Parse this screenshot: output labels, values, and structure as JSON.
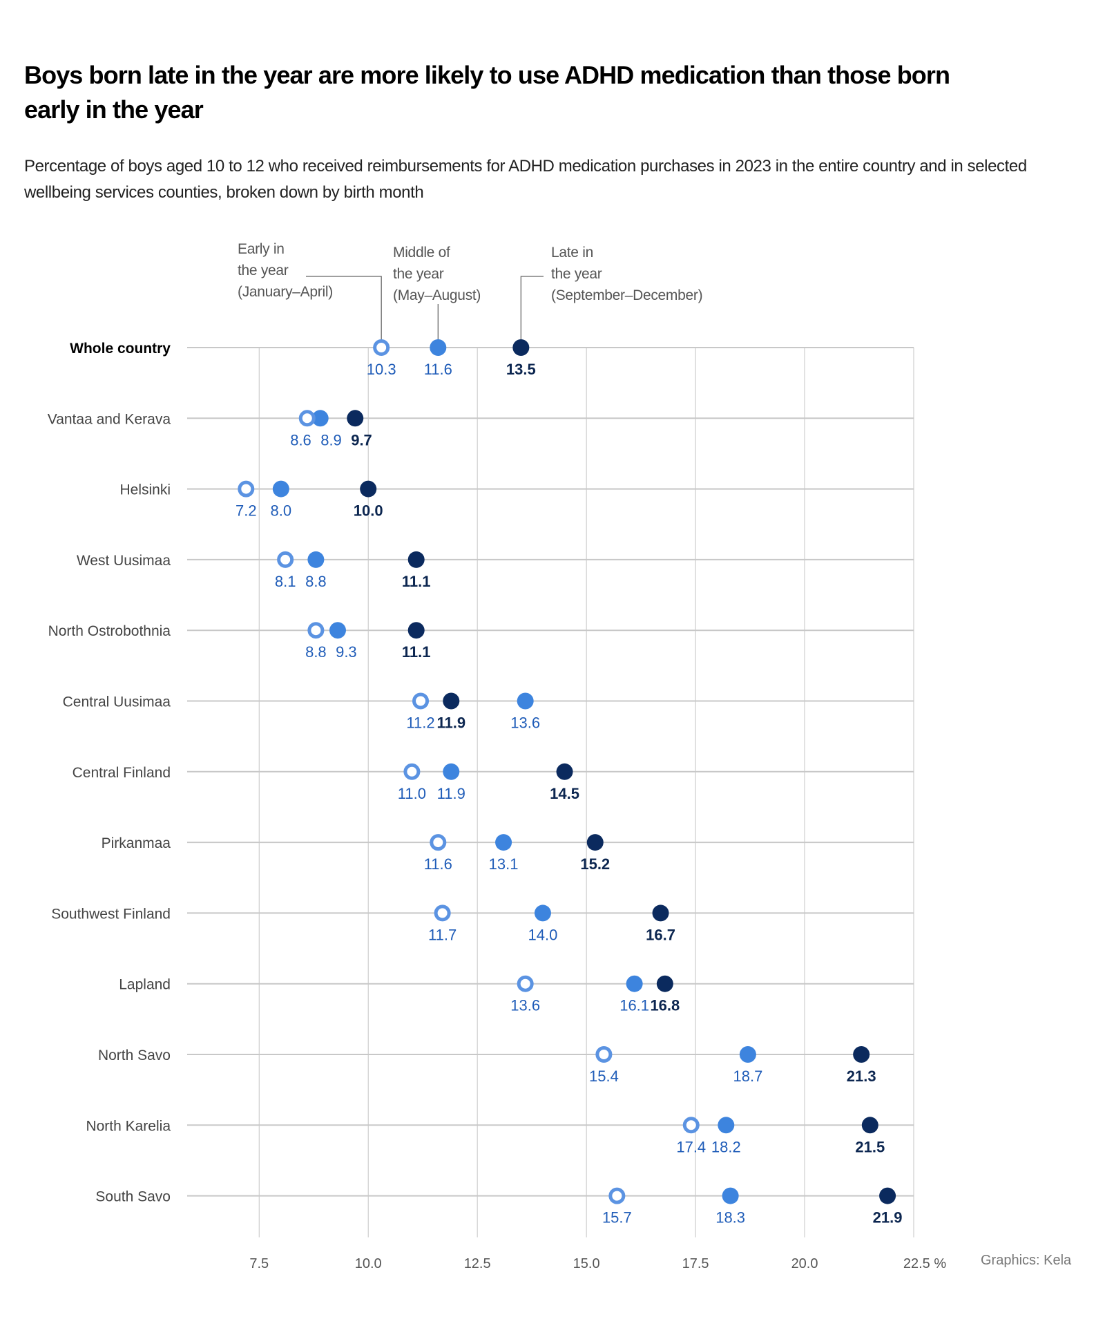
{
  "title": "Boys born late in the year are more likely to use ADHD medication than those born early in the year",
  "subtitle": "Percentage of boys aged 10 to 12 who received reimbursements for ADHD medication purchases in 2023 in the entire country and in selected wellbeing services counties, broken down by birth month",
  "legend": {
    "early": "Early in\nthe year\n(January–April)",
    "middle": "Middle of\nthe year\n(May–August)",
    "late": "Late in\nthe year\n(September–December)"
  },
  "credit": "Graphics: Kela",
  "colors": {
    "early_stroke": "#5b93e2",
    "middle": "#3d84de",
    "late": "#0b2a5e",
    "label_blue": "#1f5cb8",
    "label_dark": "#0c2650",
    "grid": "#c8c8c8"
  },
  "chart_data": {
    "type": "dot",
    "title": "Boys born late in the year are more likely to use ADHD medication than those born early in the year",
    "xlabel": "",
    "unit": "%",
    "xlim": [
      5.85,
      22.5
    ],
    "xticks": [
      "7.5",
      "10.0",
      "12.5",
      "15.0",
      "17.5",
      "20.0",
      "22.5 %"
    ],
    "xtick_values": [
      7.5,
      10,
      12.5,
      15,
      17.5,
      20,
      22.5
    ],
    "grid": true,
    "series": [
      {
        "name": "Early in the year (January–April)",
        "key": "early",
        "marker": "open-circle"
      },
      {
        "name": "Middle of the year (May–August)",
        "key": "middle",
        "marker": "filled-circle"
      },
      {
        "name": "Late in the year (September–December)",
        "key": "late",
        "marker": "filled-circle-dark"
      }
    ],
    "rows": [
      {
        "label": "Whole country",
        "early": 10.3,
        "middle": 11.6,
        "late": 13.5
      },
      {
        "label": "Vantaa and Kerava",
        "early": 8.6,
        "middle": 8.9,
        "late": 9.7
      },
      {
        "label": "Helsinki",
        "early": 7.2,
        "middle": 8.0,
        "late": 10.0
      },
      {
        "label": "West Uusimaa",
        "early": 8.1,
        "middle": 8.8,
        "late": 11.1
      },
      {
        "label": "North Ostrobothnia",
        "early": 8.8,
        "middle": 9.3,
        "late": 11.1
      },
      {
        "label": "Central Uusimaa",
        "early": 11.2,
        "middle": 13.6,
        "late": 11.9
      },
      {
        "label": "Central Finland",
        "early": 11.0,
        "middle": 11.9,
        "late": 14.5
      },
      {
        "label": "Pirkanmaa",
        "early": 11.6,
        "middle": 13.1,
        "late": 15.2
      },
      {
        "label": "Southwest Finland",
        "early": 11.7,
        "middle": 14.0,
        "late": 16.7
      },
      {
        "label": "Lapland",
        "early": 13.6,
        "middle": 16.1,
        "late": 16.8
      },
      {
        "label": "North Savo",
        "early": 15.4,
        "middle": 18.7,
        "late": 21.3
      },
      {
        "label": "North Karelia",
        "early": 17.4,
        "middle": 18.2,
        "late": 21.5
      },
      {
        "label": "South Savo",
        "early": 15.7,
        "middle": 18.3,
        "late": 21.9
      }
    ]
  }
}
